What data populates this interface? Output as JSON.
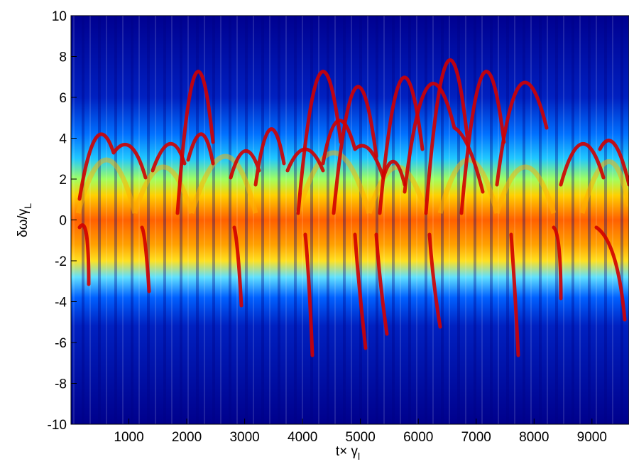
{
  "chart_data": {
    "type": "heatmap",
    "xlabel": "t× γ",
    "xlabel_sub": "l",
    "ylabel": "δω/γ",
    "ylabel_sub": "L",
    "xlim": [
      0,
      9640
    ],
    "xticks": [
      1000,
      2000,
      3000,
      4000,
      5000,
      6000,
      7000,
      8000,
      9000
    ],
    "ylim": [
      -10,
      10
    ],
    "yticks": [
      -10,
      -8,
      -6,
      -4,
      -2,
      0,
      2,
      4,
      6,
      8,
      10
    ],
    "colormap": "jet"
  }
}
